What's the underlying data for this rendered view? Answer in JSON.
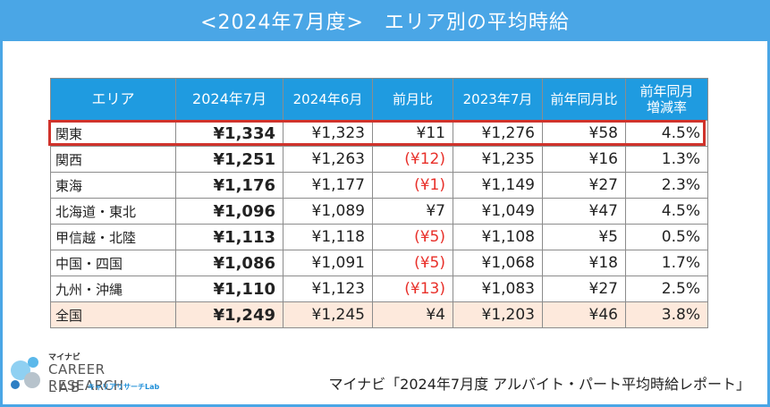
{
  "title": "<2024年7月度>　エリア別の平均時給",
  "columns": [
    "エリア",
    "2024年7月",
    "2024年6月",
    "前月比",
    "2023年7月",
    "前年同月比",
    "前年同月\n増減率"
  ],
  "rows": [
    {
      "area": "関東",
      "jul2024": "¥1,334",
      "jun2024": "¥1,323",
      "mom": "¥11",
      "mom_negative": false,
      "jul2023": "¥1,276",
      "yoy": "¥58",
      "yoy_rate": "4.5%",
      "highlighted": true
    },
    {
      "area": "関西",
      "jul2024": "¥1,251",
      "jun2024": "¥1,263",
      "mom": "(¥12)",
      "mom_negative": true,
      "jul2023": "¥1,235",
      "yoy": "¥16",
      "yoy_rate": "1.3%"
    },
    {
      "area": "東海",
      "jul2024": "¥1,176",
      "jun2024": "¥1,177",
      "mom": "(¥1)",
      "mom_negative": true,
      "jul2023": "¥1,149",
      "yoy": "¥27",
      "yoy_rate": "2.3%"
    },
    {
      "area": "北海道・東北",
      "jul2024": "¥1,096",
      "jun2024": "¥1,089",
      "mom": "¥7",
      "mom_negative": false,
      "jul2023": "¥1,049",
      "yoy": "¥47",
      "yoy_rate": "4.5%"
    },
    {
      "area": "甲信越・北陸",
      "jul2024": "¥1,113",
      "jun2024": "¥1,118",
      "mom": "(¥5)",
      "mom_negative": true,
      "jul2023": "¥1,108",
      "yoy": "¥5",
      "yoy_rate": "0.5%"
    },
    {
      "area": "中国・四国",
      "jul2024": "¥1,086",
      "jun2024": "¥1,091",
      "mom": "(¥5)",
      "mom_negative": true,
      "jul2023": "¥1,068",
      "yoy": "¥18",
      "yoy_rate": "1.7%"
    },
    {
      "area": "九州・沖縄",
      "jul2024": "¥1,110",
      "jun2024": "¥1,123",
      "mom": "(¥13)",
      "mom_negative": true,
      "jul2023": "¥1,083",
      "yoy": "¥27",
      "yoy_rate": "2.5%"
    },
    {
      "area": "全国",
      "jul2024": "¥1,249",
      "jun2024": "¥1,245",
      "mom": "¥4",
      "mom_negative": false,
      "jul2023": "¥1,203",
      "yoy": "¥46",
      "yoy_rate": "3.8%",
      "total": true
    }
  ],
  "colors": {
    "header": "#1f9be0",
    "title_bar": "#4aa6e6",
    "negative": "#e8302a",
    "total_row": "#fde9dc",
    "highlight_border": "#d0332c"
  },
  "logo": {
    "small": "マイナビ",
    "line1": "CAREER RESEARCH",
    "line2": "LAB",
    "sub": "キャリアリサーチLab"
  },
  "source": "マイナビ「2024年7月度 アルバイト・パート平均時給レポート」"
}
